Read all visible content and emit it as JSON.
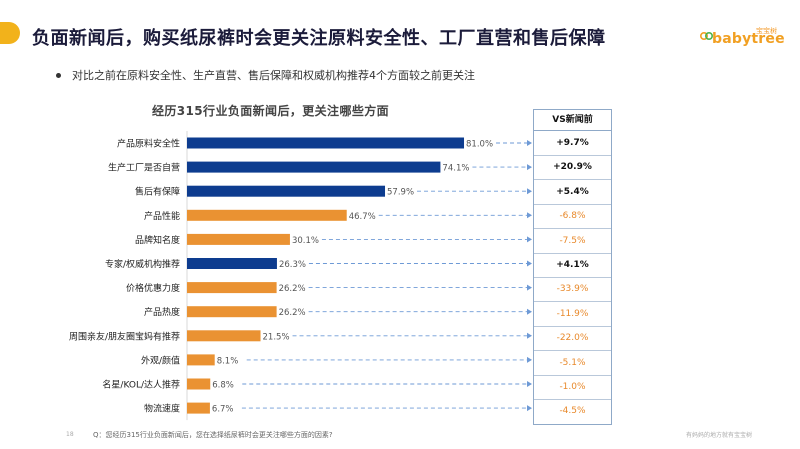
{
  "title": "负面新闻后，购买纸尿裤时会更关注原料安全性、工厂直营和售后保障",
  "logo": {
    "text": "babytree",
    "cn": "宝宝树"
  },
  "bullet": "对比之前在原料安全性、生产直营、售后保障和权威机构推荐4个方面较之前更关注",
  "colors": {
    "navy": "#0d3c8f",
    "orange": "#ea9232",
    "dash": "#6e9ad6",
    "negative": "#e8892b"
  },
  "chart_data": {
    "type": "bar",
    "orientation": "horizontal",
    "title": "经历315行业负面新闻后，更关注哪些方面",
    "categories": [
      "产品原料安全性",
      "生产工厂是否自营",
      "售后有保障",
      "产品性能",
      "品牌知名度",
      "专家/权威机构推荐",
      "价格优惠力度",
      "产品热度",
      "周围亲友/朋友圈宝妈有推荐",
      "外观/颜值",
      "名星/KOL/达人推荐",
      "物流速度"
    ],
    "values": [
      81.0,
      74.1,
      57.9,
      46.7,
      30.1,
      26.3,
      26.2,
      26.2,
      21.5,
      8.1,
      6.8,
      6.7
    ],
    "value_labels": [
      "81.0%",
      "74.1%",
      "57.9%",
      "46.7%",
      "30.1%",
      "26.3%",
      "26.2%",
      "26.2%",
      "21.5%",
      "8.1%",
      "6.8%",
      "6.7%"
    ],
    "bar_colors": [
      "navy",
      "navy",
      "navy",
      "orange",
      "orange",
      "navy",
      "orange",
      "orange",
      "orange",
      "orange",
      "orange",
      "orange"
    ],
    "xlim": [
      0,
      100
    ]
  },
  "vs": {
    "header": "VS新闻前",
    "values": [
      "+9.7%",
      "+20.9%",
      "+5.4%",
      "-6.8%",
      "-7.5%",
      "+4.1%",
      "-33.9%",
      "-11.9%",
      "-22.0%",
      "-5.1%",
      "-1.0%",
      "-4.5%"
    ]
  },
  "footer": {
    "page": "18",
    "question": "Q：您经历315行业负面新闻后，您在选择纸尿裤时会更关注哪些方面的因素?",
    "right": "有妈妈的地方就有宝宝树"
  }
}
